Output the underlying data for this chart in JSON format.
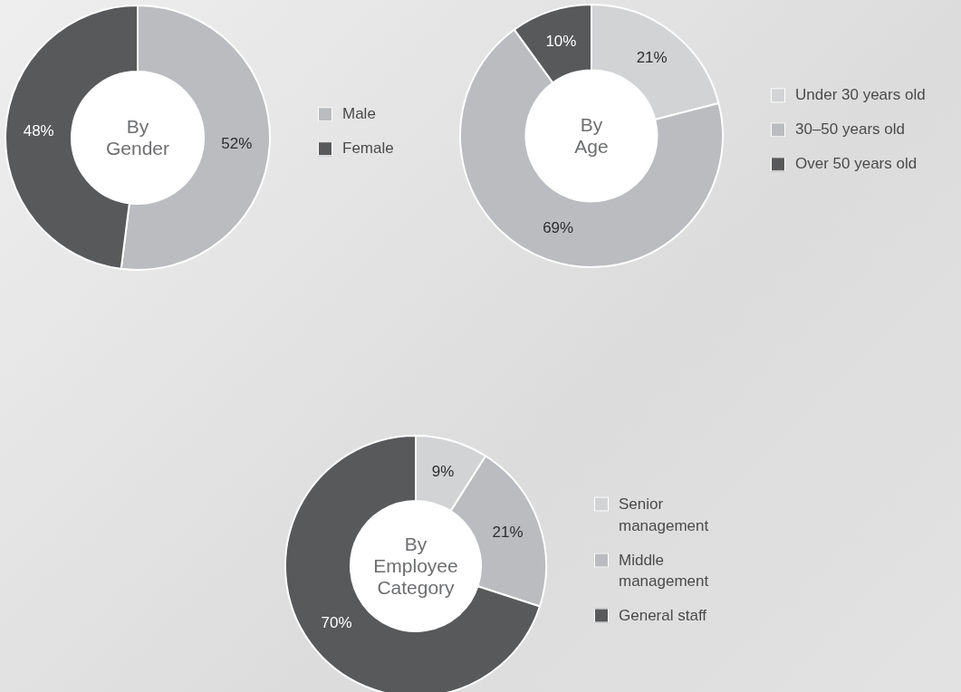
{
  "chart_data": [
    {
      "type": "donut",
      "title": "By Gender",
      "categories": [
        "Male",
        "Female"
      ],
      "values": [
        52,
        48
      ],
      "colors": [
        "#bbbcbf",
        "#58595b"
      ],
      "value_labels": [
        "52%",
        "48%"
      ],
      "legend": "right"
    },
    {
      "type": "donut",
      "title": "By Age",
      "categories": [
        "Under 30 years old",
        "30–50 years old",
        "Over 50 years old"
      ],
      "values": [
        21,
        69,
        10
      ],
      "colors": [
        "#d2d3d5",
        "#bbbcbf",
        "#58595b"
      ],
      "value_labels": [
        "21%",
        "69%",
        "10%"
      ],
      "legend": "right"
    },
    {
      "type": "donut",
      "title": "By Employee Category",
      "categories": [
        "Senior management",
        "Middle management",
        "General staff"
      ],
      "values": [
        9,
        21,
        70
      ],
      "colors": [
        "#d2d3d5",
        "#bbbcbf",
        "#58595b"
      ],
      "value_labels": [
        "9%",
        "21%",
        "70%"
      ],
      "legend": "right"
    }
  ]
}
